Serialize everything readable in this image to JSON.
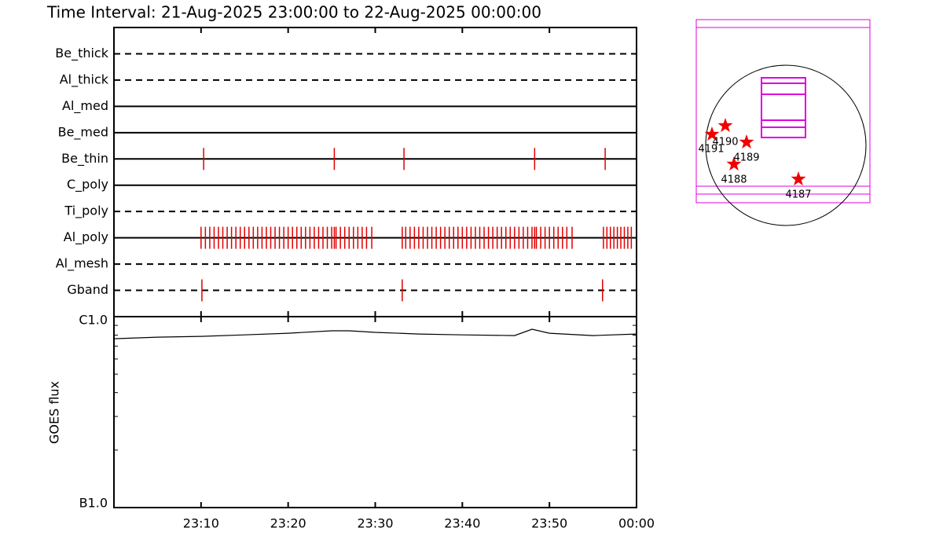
{
  "chart_data": [
    {
      "type": "timeline",
      "title": "Time Interval: 21-Aug-2025 23:00:00 to 22-Aug-2025 00:00:00",
      "categories": [
        "Be_thick",
        "Al_thick",
        "Al_med",
        "Be_med",
        "Be_thin",
        "C_poly",
        "Ti_poly",
        "Al_poly",
        "Al_mesh",
        "Gband"
      ],
      "line_styles": [
        "dashed",
        "dashed",
        "solid",
        "solid",
        "solid",
        "solid",
        "dashed",
        "solid",
        "dashed",
        "dashed"
      ],
      "color": "#e00000",
      "events": [
        [],
        [],
        [],
        [],
        [
          10.3,
          25.3,
          33.3,
          48.3,
          56.4
        ],
        [],
        [],
        [
          10.0,
          10.5,
          11.0,
          11.5,
          12.0,
          12.5,
          13.0,
          13.5,
          14.0,
          14.5,
          15.0,
          15.5,
          16.0,
          16.5,
          17.0,
          17.5,
          18.0,
          18.5,
          19.0,
          19.5,
          20.0,
          20.5,
          21.0,
          21.5,
          22.0,
          22.5,
          23.0,
          23.5,
          24.0,
          24.5,
          25.0,
          25.3,
          25.5,
          26.0,
          26.5,
          27.0,
          27.5,
          28.0,
          28.5,
          29.0,
          29.6,
          33.1,
          33.5,
          34.0,
          34.5,
          35.0,
          35.5,
          36.0,
          36.5,
          37.0,
          37.5,
          38.0,
          38.5,
          39.0,
          39.5,
          40.0,
          40.5,
          41.0,
          41.5,
          42.0,
          42.5,
          43.0,
          43.5,
          44.0,
          44.5,
          45.0,
          45.5,
          46.0,
          46.5,
          47.0,
          47.5,
          48.0,
          48.3,
          48.5,
          49.0,
          49.5,
          50.0,
          50.5,
          51.0,
          51.5,
          52.0,
          52.6,
          56.2,
          56.6,
          57.0,
          57.4,
          57.8,
          58.2,
          58.6,
          59.0,
          59.4
        ],
        [],
        [
          10.1,
          33.1,
          56.1
        ]
      ]
    },
    {
      "type": "line",
      "ylabel": "GOES flux",
      "log_scale": true,
      "color": "#000000",
      "x": [
        0,
        5,
        10,
        15,
        20,
        25,
        27,
        30,
        35,
        40,
        46,
        48,
        50,
        55,
        60
      ],
      "values": [
        7.66e-07,
        7.81e-07,
        7.88e-07,
        8.03e-07,
        8.19e-07,
        8.43e-07,
        8.43e-07,
        8.27e-07,
        8.11e-07,
        8.03e-07,
        7.96e-07,
        8.59e-07,
        8.19e-07,
        7.96e-07,
        8.11e-07
      ],
      "xlim": [
        0,
        60
      ],
      "xticks": [
        {
          "value": 10,
          "label": "23:10"
        },
        {
          "value": 20,
          "label": "23:20"
        },
        {
          "value": 30,
          "label": "23:30"
        },
        {
          "value": 40,
          "label": "23:40"
        },
        {
          "value": 50,
          "label": "23:50"
        },
        {
          "value": 60,
          "label": "00:00"
        }
      ],
      "ylim": [
        1e-07,
        1e-06
      ],
      "yticks": [
        {
          "value": 1e-06,
          "label": "C1.0"
        },
        {
          "value": 1e-07,
          "label": "B1.0"
        }
      ],
      "yticks_minor": [
        2e-07,
        3e-07,
        4e-07,
        5e-07,
        6e-07,
        7e-07,
        8e-07,
        9e-07
      ]
    }
  ],
  "map": {
    "region_labels": [
      "4191",
      "4190",
      "4189",
      "4188",
      "4187"
    ]
  }
}
